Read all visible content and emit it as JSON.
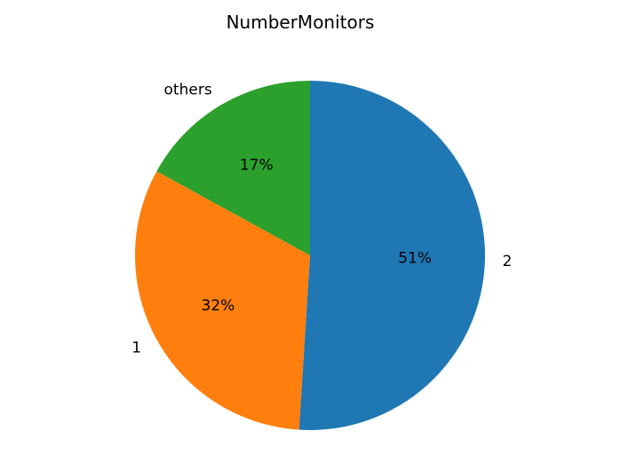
{
  "chart_data": {
    "type": "pie",
    "title": "NumberMonitors",
    "slices": [
      {
        "label": "2",
        "value": 51,
        "pct_label": "51%",
        "color": "#1f77b4"
      },
      {
        "label": "1",
        "value": 32,
        "pct_label": "32%",
        "color": "#ff7f0e"
      },
      {
        "label": "others",
        "value": 17,
        "pct_label": "17%",
        "color": "#2ca02c"
      }
    ],
    "start_angle_deg": 90,
    "direction": "clockwise",
    "legend": "none"
  }
}
